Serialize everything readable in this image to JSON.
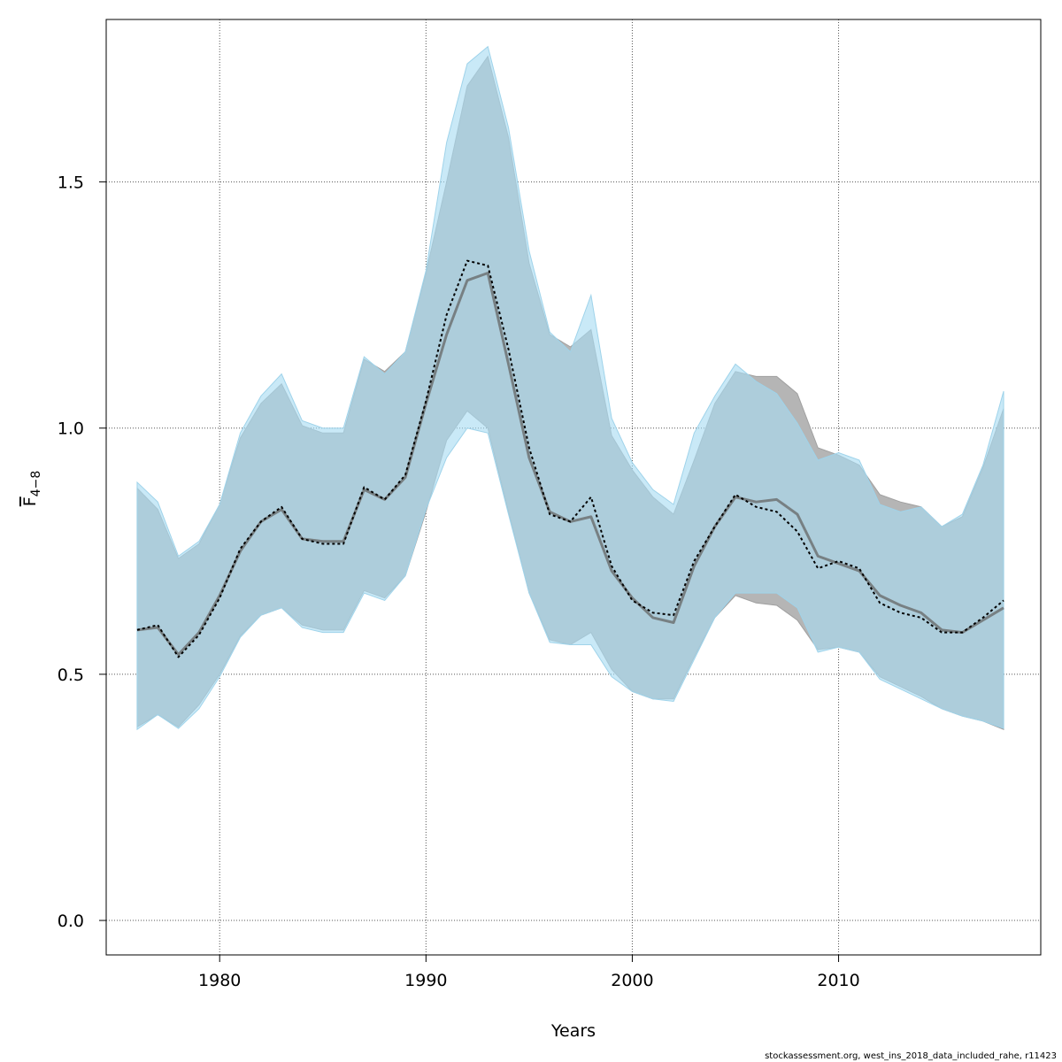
{
  "chart_data": {
    "type": "area",
    "xlabel": "Years",
    "ylabel": "F",
    "ylabel_subscript": "4−8",
    "xlim": [
      1974.5,
      2019.8
    ],
    "ylim": [
      -0.07,
      1.83
    ],
    "xticks": [
      1980,
      1990,
      2000,
      2010
    ],
    "yticks": [
      0.0,
      0.5,
      1.0,
      1.5
    ],
    "xtick_labels": [
      "1980",
      "1990",
      "2000",
      "2010"
    ],
    "ytick_labels": [
      "0.0",
      "0.5",
      "1.0",
      "1.5"
    ],
    "grid": true,
    "x": [
      1976,
      1977,
      1978,
      1979,
      1980,
      1981,
      1982,
      1983,
      1984,
      1985,
      1986,
      1987,
      1988,
      1989,
      1990,
      1991,
      1992,
      1993,
      1994,
      1995,
      1996,
      1997,
      1998,
      1999,
      2000,
      2001,
      2002,
      2003,
      2004,
      2005,
      2006,
      2007,
      2008,
      2009,
      2010,
      2011,
      2012,
      2013,
      2014,
      2015,
      2016,
      2017,
      2018
    ],
    "series": [
      {
        "style": "grey-band-solid-line",
        "line_color": "#666666",
        "band_color": "#b5b5b5",
        "estimate": [
          0.59,
          0.595,
          0.54,
          0.585,
          0.66,
          0.75,
          0.81,
          0.835,
          0.775,
          0.77,
          0.77,
          0.875,
          0.855,
          0.9,
          1.05,
          1.19,
          1.3,
          1.315,
          1.13,
          0.94,
          0.83,
          0.81,
          0.82,
          0.71,
          0.655,
          0.615,
          0.605,
          0.72,
          0.8,
          0.86,
          0.85,
          0.855,
          0.825,
          0.74,
          0.725,
          0.71,
          0.66,
          0.64,
          0.625,
          0.59,
          0.585,
          0.61,
          0.635
        ],
        "lower": [
          0.393,
          0.418,
          0.393,
          0.438,
          0.5,
          0.578,
          0.62,
          0.635,
          0.6,
          0.59,
          0.59,
          0.67,
          0.655,
          0.7,
          0.83,
          0.975,
          1.035,
          1.0,
          0.83,
          0.665,
          0.57,
          0.56,
          0.585,
          0.51,
          0.465,
          0.45,
          0.45,
          0.535,
          0.615,
          0.66,
          0.645,
          0.64,
          0.61,
          0.55,
          0.555,
          0.545,
          0.495,
          0.475,
          0.455,
          0.43,
          0.415,
          0.405,
          0.388
        ],
        "upper": [
          0.878,
          0.835,
          0.735,
          0.765,
          0.845,
          0.98,
          1.05,
          1.09,
          1.005,
          0.99,
          0.99,
          1.14,
          1.115,
          1.155,
          1.315,
          1.5,
          1.695,
          1.755,
          1.59,
          1.335,
          1.19,
          1.165,
          1.2,
          0.985,
          0.915,
          0.86,
          0.825,
          0.935,
          1.05,
          1.115,
          1.105,
          1.105,
          1.07,
          0.96,
          0.945,
          0.925,
          0.865,
          0.85,
          0.84,
          0.8,
          0.82,
          0.92,
          1.04
        ]
      },
      {
        "style": "blue-band-dotted-line",
        "line_color": "#000000",
        "band_color": "#a8dcf2",
        "estimate": [
          0.59,
          0.6,
          0.535,
          0.58,
          0.655,
          0.755,
          0.81,
          0.84,
          0.775,
          0.765,
          0.765,
          0.88,
          0.855,
          0.905,
          1.055,
          1.23,
          1.34,
          1.33,
          1.16,
          0.96,
          0.825,
          0.81,
          0.86,
          0.72,
          0.65,
          0.625,
          0.62,
          0.73,
          0.8,
          0.865,
          0.84,
          0.83,
          0.79,
          0.715,
          0.73,
          0.715,
          0.645,
          0.625,
          0.615,
          0.585,
          0.585,
          0.615,
          0.65
        ],
        "lower": [
          0.388,
          0.418,
          0.39,
          0.43,
          0.495,
          0.575,
          0.62,
          0.635,
          0.595,
          0.585,
          0.585,
          0.665,
          0.65,
          0.7,
          0.835,
          0.94,
          1.0,
          0.99,
          0.825,
          0.665,
          0.565,
          0.56,
          0.56,
          0.495,
          0.465,
          0.45,
          0.445,
          0.53,
          0.615,
          0.665,
          0.665,
          0.665,
          0.635,
          0.545,
          0.555,
          0.545,
          0.49,
          0.47,
          0.45,
          0.43,
          0.415,
          0.405,
          0.39
        ],
        "upper": [
          0.89,
          0.85,
          0.74,
          0.77,
          0.845,
          0.99,
          1.065,
          1.11,
          1.015,
          1.0,
          1.0,
          1.145,
          1.11,
          1.155,
          1.32,
          1.58,
          1.74,
          1.775,
          1.61,
          1.36,
          1.195,
          1.155,
          1.27,
          1.02,
          0.93,
          0.875,
          0.845,
          0.99,
          1.065,
          1.13,
          1.095,
          1.07,
          1.01,
          0.935,
          0.95,
          0.935,
          0.845,
          0.83,
          0.84,
          0.8,
          0.825,
          0.925,
          1.075
        ]
      }
    ]
  },
  "footer": "stockassessment.org, west_ins_2018_data_included_rahe, r11423"
}
